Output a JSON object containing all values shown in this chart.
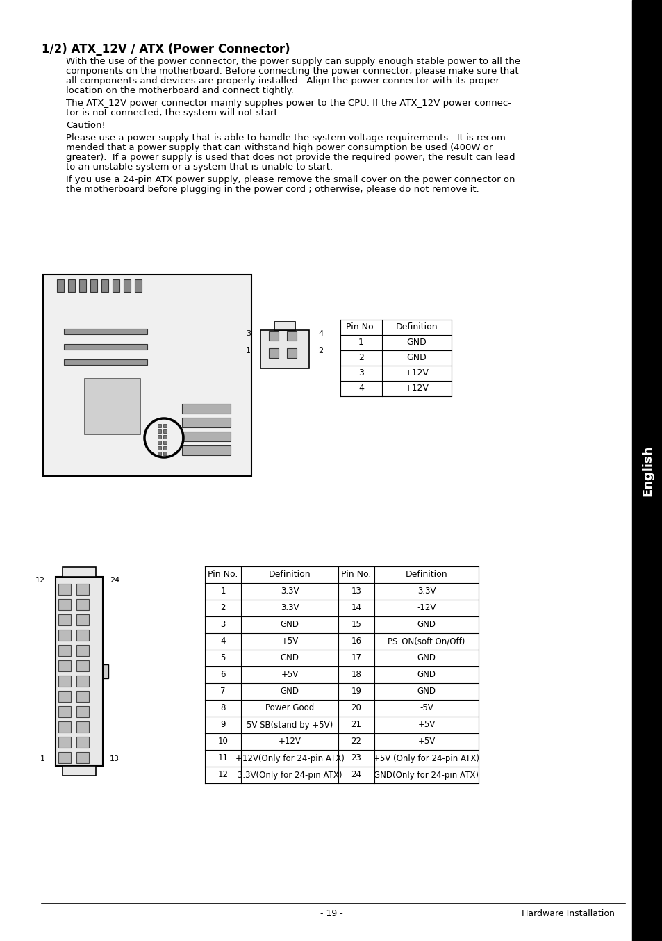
{
  "title": "1/2) ATX_12V / ATX (Power Connector)",
  "para1": "With the use of the power connector, the power supply can supply enough stable power to all the\ncomponents on the motherboard. Before connecting the power connector, please make sure that\nall components and devices are properly installed.  Align the power connector with its proper\nlocation on the motherboard and connect tightly.",
  "para2": "The ATX_12V power connector mainly supplies power to the CPU. If the ATX_12V power connec-\ntor is not connected, the system will not start.",
  "para3": "Caution!",
  "para4": "Please use a power supply that is able to handle the system voltage requirements.  It is recom-\nmended that a power supply that can withstand high power consumption be used (400W or\ngreater).  If a power supply is used that does not provide the required power, the result can lead\nto an unstable system or a system that is unable to start.",
  "para5": "If you use a 24-pin ATX power supply, please remove the small cover on the power connector on\nthe motherboard before plugging in the power cord ; otherwise, please do not remove it.",
  "small_table_headers": [
    "Pin No.",
    "Definition"
  ],
  "small_table_data": [
    [
      "1",
      "GND"
    ],
    [
      "2",
      "GND"
    ],
    [
      "3",
      "+12V"
    ],
    [
      "4",
      "+12V"
    ]
  ],
  "big_table_headers": [
    "Pin No.",
    "Definition",
    "Pin No.",
    "Definition"
  ],
  "big_table_data": [
    [
      "1",
      "3.3V",
      "13",
      "3.3V"
    ],
    [
      "2",
      "3.3V",
      "14",
      "-12V"
    ],
    [
      "3",
      "GND",
      "15",
      "GND"
    ],
    [
      "4",
      "+5V",
      "16",
      "PS_ON(soft On/Off)"
    ],
    [
      "5",
      "GND",
      "17",
      "GND"
    ],
    [
      "6",
      "+5V",
      "18",
      "GND"
    ],
    [
      "7",
      "GND",
      "19",
      "GND"
    ],
    [
      "8",
      "Power Good",
      "20",
      "-5V"
    ],
    [
      "9",
      "5V SB(stand by +5V)",
      "21",
      "+5V"
    ],
    [
      "10",
      "+12V",
      "22",
      "+5V"
    ],
    [
      "11",
      "+12V(Only for 24-pin ATX)",
      "23",
      "+5V (Only for 24-pin ATX)"
    ],
    [
      "12",
      "3.3V(Only for 24-pin ATX)",
      "24",
      "GND(Only for 24-pin ATX)"
    ]
  ],
  "footer_left": "- 19 -",
  "footer_right": "Hardware Installation",
  "english_label": "English",
  "bg_color": "#ffffff",
  "text_color": "#000000",
  "sidebar_color": "#000000"
}
